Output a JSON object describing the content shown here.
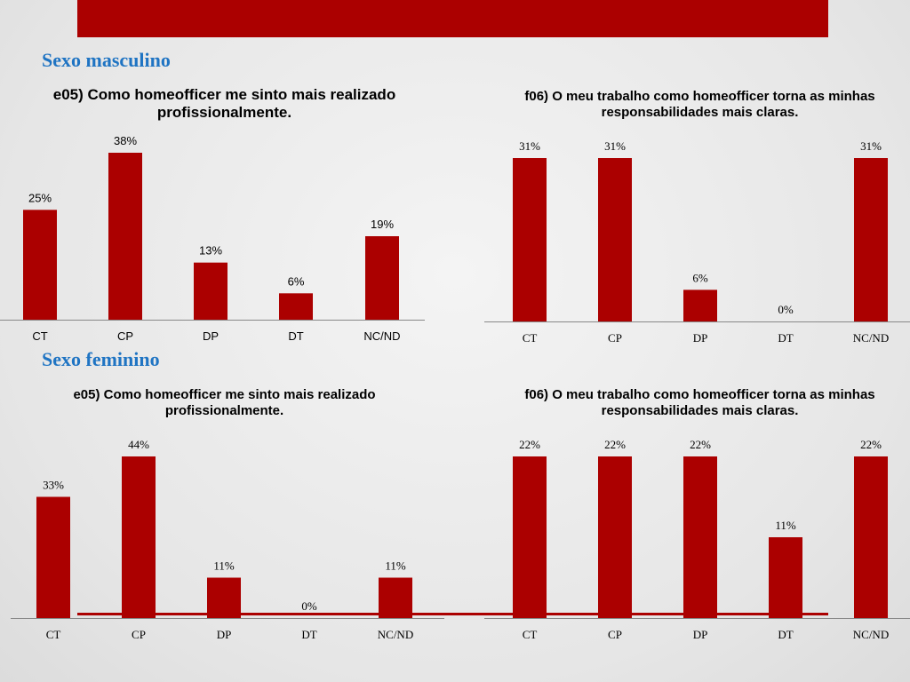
{
  "colors": {
    "banner": "#ab0000",
    "bar": "#ab0000",
    "section_title": "#1f74c3",
    "axis": "#888888"
  },
  "sections": {
    "masculino": {
      "title": "Sexo masculino"
    },
    "feminino": {
      "title": "Sexo feminino"
    }
  },
  "chart_data": [
    {
      "type": "bar",
      "title": "e05) Como homeofficer me sinto mais realizado profissionalmente.",
      "categories": [
        "CT",
        "CP",
        "DP",
        "DT",
        "NC/ND"
      ],
      "values": [
        25,
        38,
        13,
        6,
        19
      ],
      "data_labels": [
        "25%",
        "38%",
        "13%",
        "6%",
        "19%"
      ]
    },
    {
      "type": "bar",
      "title": "f06) O meu trabalho como homeofficer torna as minhas responsabilidades mais claras.",
      "categories": [
        "CT",
        "CP",
        "DP",
        "DT",
        "NC/ND"
      ],
      "values": [
        31,
        31,
        6,
        0,
        31
      ],
      "data_labels": [
        "31%",
        "31%",
        "6%",
        "0%",
        "31%"
      ]
    },
    {
      "type": "bar",
      "title": "e05) Como homeofficer me sinto mais realizado profissionalmente.",
      "categories": [
        "CT",
        "CP",
        "DP",
        "DT",
        "NC/ND"
      ],
      "values": [
        33,
        44,
        11,
        0,
        11
      ],
      "data_labels": [
        "33%",
        "44%",
        "11%",
        "0%",
        "11%"
      ]
    },
    {
      "type": "bar",
      "title": "f06) O meu trabalho como homeofficer torna as minhas responsabilidades mais claras.",
      "categories": [
        "CT",
        "CP",
        "DP",
        "DT",
        "NC/ND"
      ],
      "values": [
        22,
        22,
        22,
        11,
        22
      ],
      "data_labels": [
        "22%",
        "22%",
        "22%",
        "11%",
        "22%"
      ]
    }
  ]
}
